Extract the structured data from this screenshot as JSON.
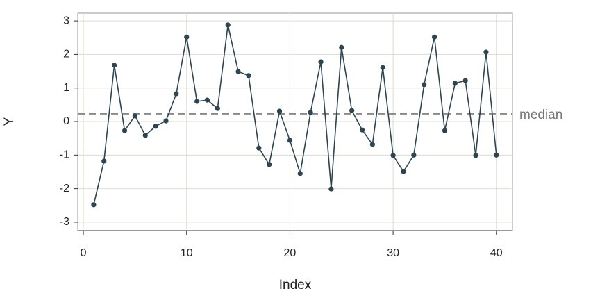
{
  "chart_data": {
    "type": "line",
    "x_label": "Index",
    "y_label": "Y",
    "x": [
      1,
      2,
      3,
      4,
      5,
      6,
      7,
      8,
      9,
      10,
      11,
      12,
      13,
      14,
      15,
      16,
      17,
      18,
      19,
      20,
      21,
      22,
      23,
      24,
      25,
      26,
      27,
      28,
      29,
      30,
      31,
      32,
      33,
      34,
      35,
      36,
      37,
      38,
      39,
      40
    ],
    "series": [
      {
        "color": "#2e4450",
        "values": [
          -2.48,
          -1.18,
          1.68,
          -0.27,
          0.17,
          -0.41,
          -0.14,
          0.02,
          0.83,
          2.52,
          0.6,
          0.64,
          0.39,
          2.88,
          1.49,
          1.37,
          -0.79,
          -1.28,
          0.31,
          -0.56,
          -1.55,
          0.27,
          1.78,
          -2.01,
          2.21,
          0.33,
          -0.25,
          -0.68,
          1.61,
          -1.01,
          -1.49,
          -1.0,
          1.1,
          2.52,
          -0.27,
          1.14,
          1.22,
          -1.01,
          2.07,
          -1.0
        ]
      }
    ],
    "reference_line": {
      "value": 0.23,
      "label": "median",
      "color": "#777777"
    },
    "xlim": [
      -0.54,
      41.56
    ],
    "xticks": [
      0,
      10,
      20,
      30,
      40
    ],
    "ylim": [
      -3.25,
      3.23
    ],
    "yticks": [
      -3,
      -2,
      -1,
      0,
      1,
      2,
      3
    ],
    "grid": true
  }
}
